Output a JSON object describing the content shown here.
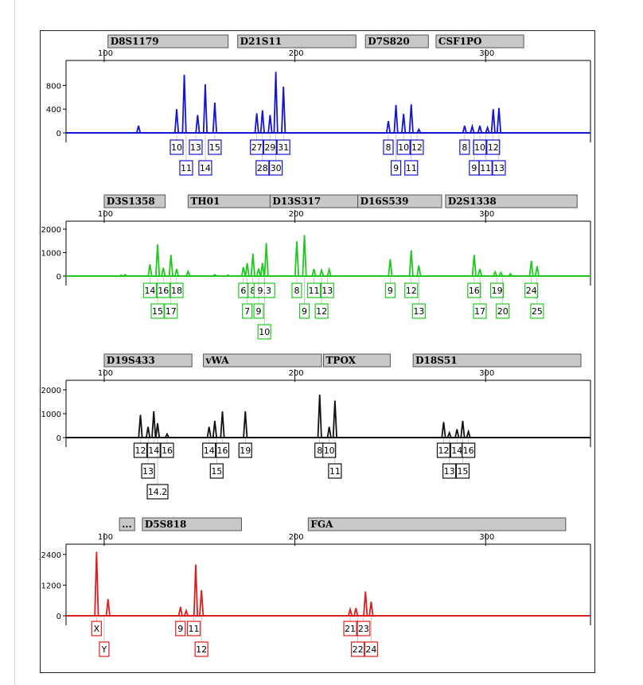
{
  "chart_data": [
    {
      "type": "line",
      "color": "#1414d2",
      "ylim": [
        -30,
        1100
      ],
      "yticks": [
        0,
        400,
        800
      ],
      "xticks": [
        100,
        200,
        300
      ],
      "xlim": [
        80,
        355
      ],
      "loci": [
        {
          "name": "D8S1179",
          "start": 102,
          "end": 165
        },
        {
          "name": "D21S11",
          "start": 170,
          "end": 232
        },
        {
          "name": "D7S820",
          "start": 237,
          "end": 270
        },
        {
          "name": "CSF1PO",
          "start": 274,
          "end": 320
        }
      ],
      "peaks": [
        [
          118,
          120
        ],
        [
          138,
          400
        ],
        [
          142,
          980
        ],
        [
          149,
          300
        ],
        [
          153,
          820
        ],
        [
          158,
          510
        ],
        [
          180,
          330
        ],
        [
          183,
          380
        ],
        [
          187,
          300
        ],
        [
          190,
          1030
        ],
        [
          194,
          780
        ],
        [
          249,
          200
        ],
        [
          253,
          470
        ],
        [
          257,
          320
        ],
        [
          261,
          480
        ],
        [
          265,
          60
        ],
        [
          289,
          120
        ],
        [
          293,
          110
        ],
        [
          297,
          120
        ],
        [
          301,
          90
        ],
        [
          304,
          400
        ],
        [
          307,
          420
        ]
      ],
      "alleles": [
        {
          "label": "10",
          "x": 138,
          "row": 0
        },
        {
          "label": "13",
          "x": 148,
          "row": 0
        },
        {
          "label": "15",
          "x": 158,
          "row": 0
        },
        {
          "label": "11",
          "x": 143,
          "row": 1
        },
        {
          "label": "14",
          "x": 153,
          "row": 1
        },
        {
          "label": "27",
          "x": 180,
          "row": 0
        },
        {
          "label": "29",
          "x": 187,
          "row": 0
        },
        {
          "label": "31",
          "x": 194,
          "row": 0
        },
        {
          "label": "28",
          "x": 183,
          "row": 1
        },
        {
          "label": "30",
          "x": 190,
          "row": 1
        },
        {
          "label": "8",
          "x": 249,
          "row": 0
        },
        {
          "label": "10",
          "x": 257,
          "row": 0
        },
        {
          "label": "12",
          "x": 264,
          "row": 0
        },
        {
          "label": "9",
          "x": 253,
          "row": 1
        },
        {
          "label": "11",
          "x": 261,
          "row": 1
        },
        {
          "label": "8",
          "x": 289,
          "row": 0
        },
        {
          "label": "10",
          "x": 297,
          "row": 0
        },
        {
          "label": "12",
          "x": 304,
          "row": 0
        },
        {
          "label": "9",
          "x": 294,
          "row": 1
        },
        {
          "label": "11",
          "x": 300,
          "row": 1
        },
        {
          "label": "13",
          "x": 307,
          "row": 1
        }
      ]
    },
    {
      "type": "line",
      "color": "#1ec81e",
      "ylim": [
        -60,
        2000
      ],
      "yticks": [
        0,
        1000,
        2000
      ],
      "xticks": [
        100,
        200,
        300
      ],
      "xlim": [
        80,
        355
      ],
      "loci": [
        {
          "name": "D3S1358",
          "start": 100,
          "end": 132
        },
        {
          "name": "TH01",
          "start": 144,
          "end": 187
        },
        {
          "name": "D13S317",
          "start": 187,
          "end": 233
        },
        {
          "name": "D16S539",
          "start": 233,
          "end": 277
        },
        {
          "name": "D2S1338",
          "start": 279,
          "end": 348
        }
      ],
      "peaks": [
        [
          109,
          40
        ],
        [
          111,
          60
        ],
        [
          124,
          500
        ],
        [
          128,
          1350
        ],
        [
          131,
          350
        ],
        [
          135,
          900
        ],
        [
          138,
          300
        ],
        [
          144,
          200
        ],
        [
          158,
          60
        ],
        [
          165,
          40
        ],
        [
          173,
          380
        ],
        [
          175,
          550
        ],
        [
          178,
          950
        ],
        [
          181,
          320
        ],
        [
          183,
          560
        ],
        [
          185,
          1400
        ],
        [
          201,
          1480
        ],
        [
          205,
          1750
        ],
        [
          210,
          300
        ],
        [
          214,
          250
        ],
        [
          218,
          280
        ],
        [
          250,
          720
        ],
        [
          261,
          1100
        ],
        [
          265,
          450
        ],
        [
          294,
          900
        ],
        [
          297,
          300
        ],
        [
          305,
          180
        ],
        [
          308,
          150
        ],
        [
          313,
          100
        ],
        [
          324,
          650
        ],
        [
          327,
          420
        ]
      ],
      "alleles": [
        {
          "label": "14",
          "x": 124,
          "row": 0
        },
        {
          "label": "16",
          "x": 131,
          "row": 0
        },
        {
          "label": "18",
          "x": 138,
          "row": 0
        },
        {
          "label": "15",
          "x": 128,
          "row": 1
        },
        {
          "label": "17",
          "x": 135,
          "row": 1
        },
        {
          "label": "6",
          "x": 173,
          "row": 0
        },
        {
          "label": "8",
          "x": 178,
          "row": 0
        },
        {
          "label": "9.3",
          "x": 184,
          "row": 0
        },
        {
          "label": "7",
          "x": 175,
          "row": 1
        },
        {
          "label": "9",
          "x": 181,
          "row": 1
        },
        {
          "label": "10",
          "x": 184,
          "row": 2
        },
        {
          "label": "8",
          "x": 201,
          "row": 0
        },
        {
          "label": "11",
          "x": 210,
          "row": 0
        },
        {
          "label": "13",
          "x": 217,
          "row": 0
        },
        {
          "label": "9",
          "x": 205,
          "row": 1
        },
        {
          "label": "12",
          "x": 214,
          "row": 1
        },
        {
          "label": "9",
          "x": 250,
          "row": 0
        },
        {
          "label": "12",
          "x": 261,
          "row": 0
        },
        {
          "label": "13",
          "x": 265,
          "row": 1
        },
        {
          "label": "16",
          "x": 294,
          "row": 0
        },
        {
          "label": "19",
          "x": 306,
          "row": 0
        },
        {
          "label": "24",
          "x": 324,
          "row": 0
        },
        {
          "label": "17",
          "x": 297,
          "row": 1
        },
        {
          "label": "20",
          "x": 309,
          "row": 1
        },
        {
          "label": "25",
          "x": 327,
          "row": 1
        }
      ]
    },
    {
      "type": "line",
      "color": "#111111",
      "ylim": [
        -60,
        2000
      ],
      "yticks": [
        0,
        1000,
        2000
      ],
      "xticks": [
        100,
        200,
        300
      ],
      "xlim": [
        80,
        355
      ],
      "loci": [
        {
          "name": "D19S433",
          "start": 100,
          "end": 146
        },
        {
          "name": "vWA",
          "start": 152,
          "end": 214
        },
        {
          "name": "TPOX",
          "start": 215,
          "end": 250
        },
        {
          "name": "D18S51",
          "start": 262,
          "end": 350
        }
      ],
      "peaks": [
        [
          119,
          950
        ],
        [
          123,
          450
        ],
        [
          126,
          1100
        ],
        [
          128,
          600
        ],
        [
          133,
          150
        ],
        [
          155,
          450
        ],
        [
          158,
          700
        ],
        [
          162,
          1100
        ],
        [
          174,
          1100
        ],
        [
          213,
          1800
        ],
        [
          218,
          450
        ],
        [
          221,
          1550
        ],
        [
          278,
          650
        ],
        [
          281,
          200
        ],
        [
          285,
          350
        ],
        [
          288,
          700
        ],
        [
          291,
          250
        ]
      ],
      "alleles": [
        {
          "label": "12",
          "x": 119,
          "row": 0
        },
        {
          "label": "14",
          "x": 126,
          "row": 0
        },
        {
          "label": "16",
          "x": 133,
          "row": 0
        },
        {
          "label": "13",
          "x": 123,
          "row": 1
        },
        {
          "label": "14.2",
          "x": 128,
          "row": 2
        },
        {
          "label": "14",
          "x": 155,
          "row": 0
        },
        {
          "label": "16",
          "x": 162,
          "row": 0
        },
        {
          "label": "19",
          "x": 174,
          "row": 0
        },
        {
          "label": "15",
          "x": 159,
          "row": 1
        },
        {
          "label": "8",
          "x": 213,
          "row": 0
        },
        {
          "label": "10",
          "x": 218,
          "row": 0
        },
        {
          "label": "11",
          "x": 221,
          "row": 1
        },
        {
          "label": "12",
          "x": 278,
          "row": 0
        },
        {
          "label": "14",
          "x": 285,
          "row": 0
        },
        {
          "label": "16",
          "x": 291,
          "row": 0
        },
        {
          "label": "13",
          "x": 281,
          "row": 1
        },
        {
          "label": "15",
          "x": 288,
          "row": 1
        }
      ]
    },
    {
      "type": "line",
      "color": "#dc1e1e",
      "ylim": [
        -100,
        2800
      ],
      "yticks": [
        0,
        1200,
        2400
      ],
      "xticks": [
        100,
        200,
        300
      ],
      "xlim": [
        80,
        355
      ],
      "loci": [
        {
          "name": "...",
          "start": 108,
          "end": 116
        },
        {
          "name": "D5S818",
          "start": 120,
          "end": 172
        },
        {
          "name": "FGA",
          "start": 207,
          "end": 342
        }
      ],
      "peaks": [
        [
          96,
          2500
        ],
        [
          102,
          650
        ],
        [
          140,
          350
        ],
        [
          143,
          200
        ],
        [
          148,
          2000
        ],
        [
          151,
          1000
        ],
        [
          229,
          250
        ],
        [
          232,
          300
        ],
        [
          237,
          950
        ],
        [
          240,
          550
        ]
      ],
      "alleles": [
        {
          "label": "X",
          "x": 96,
          "row": 0
        },
        {
          "label": "Y",
          "x": 100,
          "row": 1
        },
        {
          "label": "9",
          "x": 140,
          "row": 0
        },
        {
          "label": "11",
          "x": 147,
          "row": 0
        },
        {
          "label": "12",
          "x": 151,
          "row": 1
        },
        {
          "label": "21",
          "x": 229,
          "row": 0
        },
        {
          "label": "23",
          "x": 236,
          "row": 0
        },
        {
          "label": "22",
          "x": 233,
          "row": 1
        },
        {
          "label": "24",
          "x": 240,
          "row": 1
        }
      ]
    }
  ]
}
